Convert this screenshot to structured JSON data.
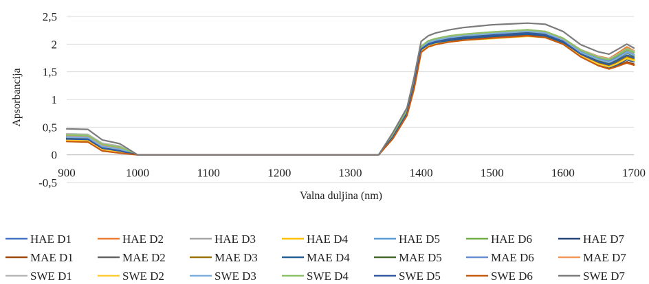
{
  "chart_data": {
    "type": "line",
    "title": "",
    "xlabel": "Valna duljina (nm)",
    "ylabel": "Apsorbancija",
    "xlim": [
      900,
      1700
    ],
    "ylim": [
      -0.5,
      2.5
    ],
    "xticks": [
      "900",
      "1000",
      "1100",
      "1200",
      "1300",
      "1400",
      "1500",
      "1600",
      "1700"
    ],
    "yticks": [
      "-0,5",
      "0",
      "0,5",
      "1",
      "1,5",
      "2",
      "2,5"
    ],
    "grid": "horizontal",
    "legend_position": "bottom",
    "x": [
      900,
      930,
      950,
      975,
      1000,
      1010,
      1330,
      1340,
      1360,
      1380,
      1390,
      1400,
      1410,
      1420,
      1440,
      1460,
      1500,
      1550,
      1575,
      1600,
      1625,
      1650,
      1665,
      1675,
      1690,
      1700
    ],
    "series": [
      {
        "name": "HAE D1",
        "color": "#4472C4",
        "values": [
          0.28,
          0.27,
          0.1,
          0.06,
          0.0,
          0.0,
          0.0,
          0.0,
          0.32,
          0.75,
          1.25,
          1.9,
          2.0,
          2.05,
          2.1,
          2.12,
          2.15,
          2.19,
          2.16,
          2.03,
          1.8,
          1.63,
          1.58,
          1.62,
          1.72,
          1.68
        ]
      },
      {
        "name": "HAE D2",
        "color": "#ED7D31",
        "values": [
          0.37,
          0.36,
          0.2,
          0.15,
          0.0,
          0.0,
          0.0,
          0.0,
          0.37,
          0.8,
          1.32,
          1.95,
          2.04,
          2.08,
          2.12,
          2.15,
          2.19,
          2.23,
          2.2,
          2.1,
          1.9,
          1.78,
          1.74,
          1.82,
          1.95,
          1.88
        ]
      },
      {
        "name": "HAE D3",
        "color": "#A5A5A5",
        "values": [
          0.32,
          0.31,
          0.15,
          0.1,
          0.0,
          0.0,
          0.0,
          0.0,
          0.34,
          0.77,
          1.28,
          1.93,
          2.03,
          2.07,
          2.12,
          2.15,
          2.18,
          2.22,
          2.2,
          2.08,
          1.85,
          1.72,
          1.68,
          1.76,
          1.87,
          1.82
        ]
      },
      {
        "name": "HAE D4",
        "color": "#FFC000",
        "values": [
          0.27,
          0.26,
          0.1,
          0.06,
          0.0,
          0.0,
          0.0,
          0.0,
          0.31,
          0.73,
          1.22,
          1.88,
          1.97,
          2.02,
          2.06,
          2.09,
          2.12,
          2.16,
          2.14,
          2.02,
          1.8,
          1.65,
          1.6,
          1.65,
          1.75,
          1.72
        ]
      },
      {
        "name": "HAE D5",
        "color": "#5B9BD5",
        "values": [
          0.31,
          0.3,
          0.14,
          0.09,
          0.0,
          0.0,
          0.0,
          0.0,
          0.34,
          0.77,
          1.28,
          1.93,
          2.02,
          2.06,
          2.11,
          2.14,
          2.18,
          2.22,
          2.19,
          2.06,
          1.84,
          1.7,
          1.65,
          1.7,
          1.8,
          1.77
        ]
      },
      {
        "name": "HAE D6",
        "color": "#70AD47",
        "values": [
          0.34,
          0.33,
          0.17,
          0.12,
          0.0,
          0.0,
          0.0,
          0.0,
          0.36,
          0.79,
          1.3,
          1.95,
          2.05,
          2.09,
          2.14,
          2.17,
          2.21,
          2.25,
          2.22,
          2.1,
          1.88,
          1.75,
          1.71,
          1.78,
          1.9,
          1.85
        ]
      },
      {
        "name": "HAE D7",
        "color": "#264478",
        "values": [
          0.3,
          0.29,
          0.13,
          0.08,
          0.0,
          0.0,
          0.0,
          0.0,
          0.33,
          0.76,
          1.27,
          1.92,
          2.01,
          2.05,
          2.1,
          2.13,
          2.17,
          2.21,
          2.18,
          2.06,
          1.83,
          1.69,
          1.65,
          1.72,
          1.85,
          1.8
        ]
      },
      {
        "name": "MAE D1",
        "color": "#9E480E",
        "values": [
          0.25,
          0.24,
          0.08,
          0.04,
          0.0,
          0.0,
          0.0,
          0.0,
          0.3,
          0.72,
          1.2,
          1.86,
          1.96,
          2.0,
          2.05,
          2.08,
          2.12,
          2.16,
          2.13,
          2.01,
          1.78,
          1.62,
          1.56,
          1.6,
          1.68,
          1.64
        ]
      },
      {
        "name": "MAE D2",
        "color": "#636363",
        "values": [
          0.29,
          0.28,
          0.12,
          0.07,
          0.0,
          0.0,
          0.0,
          0.0,
          0.32,
          0.74,
          1.24,
          1.9,
          2.0,
          2.04,
          2.09,
          2.12,
          2.16,
          2.2,
          2.17,
          2.04,
          1.82,
          1.68,
          1.63,
          1.68,
          1.8,
          1.76
        ]
      },
      {
        "name": "MAE D3",
        "color": "#997300",
        "values": [
          0.28,
          0.27,
          0.11,
          0.06,
          0.0,
          0.0,
          0.0,
          0.0,
          0.31,
          0.73,
          1.23,
          1.89,
          1.99,
          2.03,
          2.08,
          2.11,
          2.15,
          2.19,
          2.16,
          2.03,
          1.81,
          1.67,
          1.62,
          1.67,
          1.78,
          1.74
        ]
      },
      {
        "name": "MAE D4",
        "color": "#255E91",
        "values": [
          0.27,
          0.26,
          0.1,
          0.05,
          0.0,
          0.0,
          0.0,
          0.0,
          0.31,
          0.73,
          1.22,
          1.88,
          1.98,
          2.02,
          2.07,
          2.1,
          2.14,
          2.18,
          2.15,
          2.02,
          1.79,
          1.64,
          1.58,
          1.62,
          1.72,
          1.68
        ]
      },
      {
        "name": "MAE D5",
        "color": "#43682B",
        "values": [
          0.3,
          0.29,
          0.13,
          0.08,
          0.0,
          0.0,
          0.0,
          0.0,
          0.33,
          0.75,
          1.26,
          1.91,
          2.01,
          2.05,
          2.1,
          2.13,
          2.17,
          2.21,
          2.18,
          2.05,
          1.83,
          1.7,
          1.66,
          1.72,
          1.84,
          1.79
        ]
      },
      {
        "name": "MAE D6",
        "color": "#698ED0",
        "values": [
          0.33,
          0.32,
          0.16,
          0.11,
          0.0,
          0.0,
          0.0,
          0.0,
          0.35,
          0.78,
          1.29,
          1.94,
          2.04,
          2.08,
          2.13,
          2.16,
          2.2,
          2.24,
          2.21,
          2.08,
          1.86,
          1.73,
          1.69,
          1.75,
          1.86,
          1.81
        ]
      },
      {
        "name": "MAE D7",
        "color": "#F1975A",
        "values": [
          0.35,
          0.34,
          0.18,
          0.13,
          0.0,
          0.0,
          0.0,
          0.0,
          0.36,
          0.79,
          1.31,
          1.95,
          2.05,
          2.09,
          2.14,
          2.17,
          2.21,
          2.25,
          2.22,
          2.1,
          1.89,
          1.77,
          1.73,
          1.8,
          1.92,
          1.87
        ]
      },
      {
        "name": "SWE D1",
        "color": "#B7B7B7",
        "values": [
          0.38,
          0.37,
          0.21,
          0.16,
          0.0,
          0.0,
          0.0,
          0.0,
          0.37,
          0.8,
          1.33,
          1.96,
          2.06,
          2.1,
          2.15,
          2.18,
          2.22,
          2.26,
          2.23,
          2.11,
          1.9,
          1.77,
          1.73,
          1.8,
          1.92,
          1.87
        ]
      },
      {
        "name": "SWE D2",
        "color": "#FFCD33",
        "values": [
          0.26,
          0.25,
          0.09,
          0.05,
          0.0,
          0.0,
          0.0,
          0.0,
          0.3,
          0.72,
          1.21,
          1.87,
          1.96,
          2.0,
          2.04,
          2.07,
          2.1,
          2.14,
          2.12,
          2.0,
          1.79,
          1.64,
          1.59,
          1.64,
          1.74,
          1.7
        ]
      },
      {
        "name": "SWE D3",
        "color": "#7CAFDD",
        "values": [
          0.32,
          0.31,
          0.15,
          0.1,
          0.0,
          0.0,
          0.0,
          0.0,
          0.34,
          0.77,
          1.28,
          1.93,
          2.03,
          2.07,
          2.12,
          2.15,
          2.19,
          2.23,
          2.2,
          2.07,
          1.85,
          1.72,
          1.67,
          1.73,
          1.85,
          1.8
        ]
      },
      {
        "name": "SWE D4",
        "color": "#8CC168",
        "values": [
          0.36,
          0.35,
          0.19,
          0.14,
          0.0,
          0.0,
          0.0,
          0.0,
          0.37,
          0.8,
          1.32,
          1.96,
          2.06,
          2.1,
          2.15,
          2.18,
          2.22,
          2.26,
          2.23,
          2.11,
          1.89,
          1.76,
          1.72,
          1.79,
          1.91,
          1.86
        ]
      },
      {
        "name": "SWE D5",
        "color": "#335AA1",
        "values": [
          0.29,
          0.28,
          0.12,
          0.07,
          0.0,
          0.0,
          0.0,
          0.0,
          0.32,
          0.75,
          1.25,
          1.91,
          2.0,
          2.04,
          2.09,
          2.12,
          2.16,
          2.2,
          2.17,
          2.05,
          1.82,
          1.68,
          1.63,
          1.69,
          1.8,
          1.75
        ]
      },
      {
        "name": "SWE D6",
        "color": "#C55A11",
        "values": [
          0.24,
          0.23,
          0.07,
          0.03,
          0.0,
          0.0,
          0.0,
          0.0,
          0.29,
          0.71,
          1.19,
          1.85,
          1.95,
          1.99,
          2.04,
          2.07,
          2.11,
          2.15,
          2.12,
          2.0,
          1.77,
          1.61,
          1.55,
          1.59,
          1.66,
          1.62
        ]
      },
      {
        "name": "SWE D7",
        "color": "#7B7B7B",
        "values": [
          0.47,
          0.46,
          0.27,
          0.2,
          0.0,
          0.0,
          0.0,
          0.0,
          0.4,
          0.85,
          1.4,
          2.05,
          2.15,
          2.2,
          2.26,
          2.3,
          2.35,
          2.38,
          2.36,
          2.23,
          1.99,
          1.86,
          1.82,
          1.89,
          2.0,
          1.93
        ]
      }
    ]
  }
}
